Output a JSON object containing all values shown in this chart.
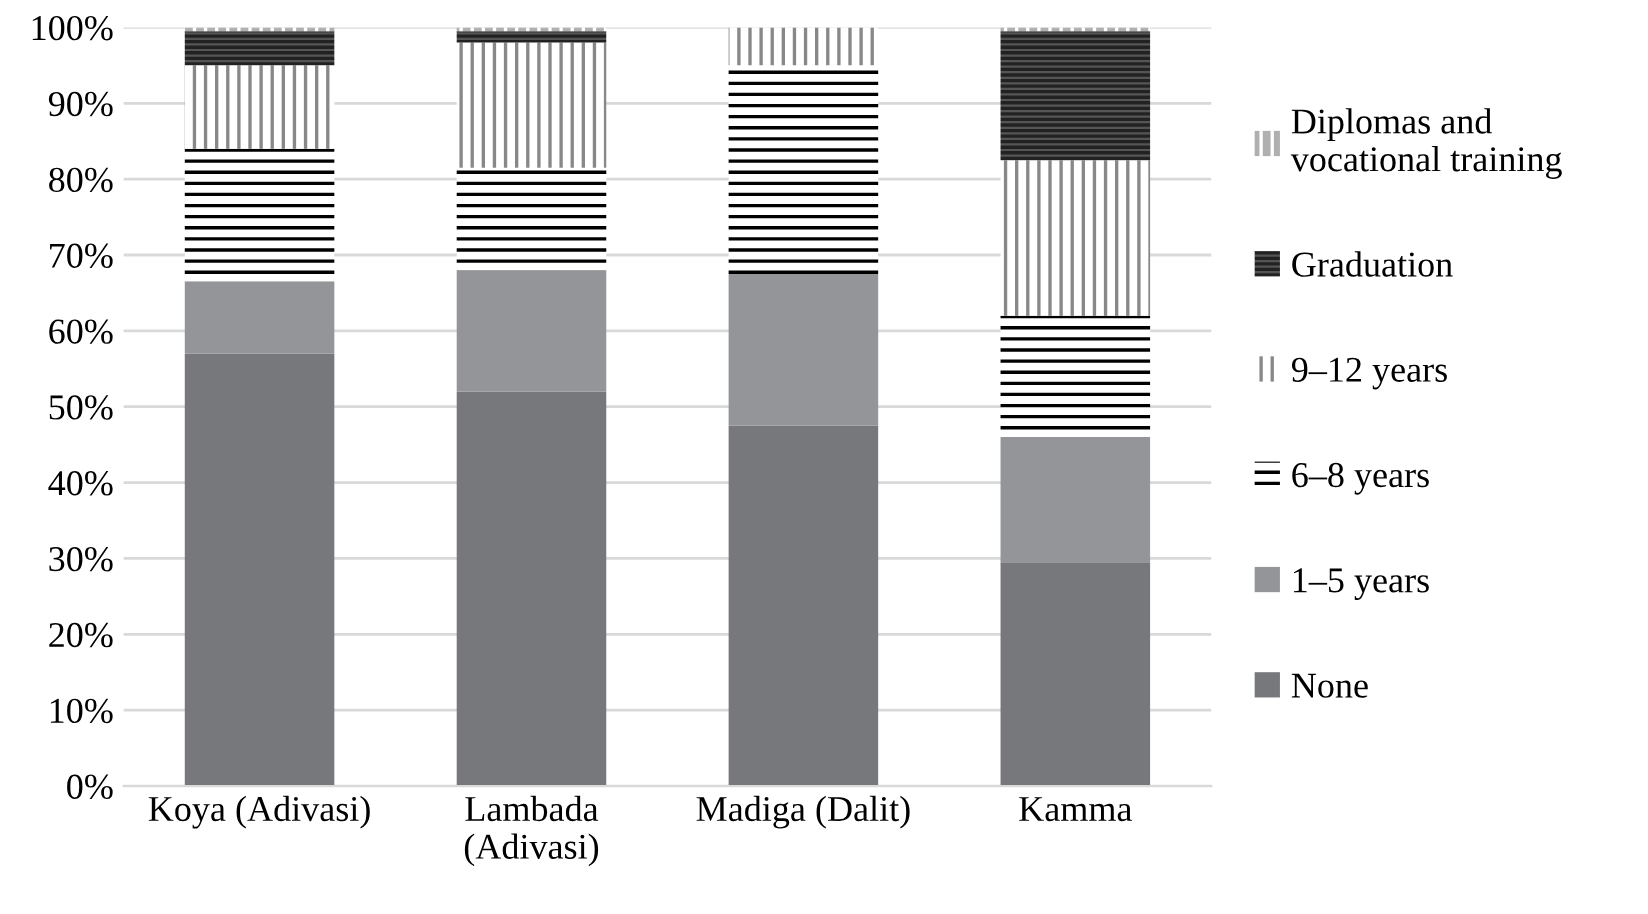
{
  "chart_data": {
    "type": "bar",
    "stacked": true,
    "categories": [
      "Koya (Adivasi)",
      "Lambada\n(Adivasi)",
      "Madiga (Dalit)",
      "Kamma"
    ],
    "series": [
      {
        "name": "None",
        "color": "#77787b",
        "values": [
          57,
          52,
          47.5,
          29.5
        ]
      },
      {
        "name": "1–5 years",
        "color": "#949598",
        "values": [
          9.5,
          16,
          20,
          16.5
        ]
      },
      {
        "name": "6–8 years",
        "color": "#ffffff",
        "values": [
          17.5,
          13.5,
          27.5,
          16
        ]
      },
      {
        "name": "9–12 years",
        "color": "#ffffff",
        "values": [
          11,
          16.5,
          5,
          20.5
        ]
      },
      {
        "name": "Graduation",
        "color": "#555555",
        "values": [
          4.5,
          1.5,
          0,
          17
        ]
      },
      {
        "name": "Diplomas and\nvocational training",
        "color": "#b0b0b0",
        "values": [
          0.5,
          0.5,
          0,
          0.5
        ]
      }
    ],
    "ylim": [
      0,
      100
    ],
    "yticks": [
      {
        "value": 0,
        "label": "0%"
      },
      {
        "value": 10,
        "label": "10%"
      },
      {
        "value": 20,
        "label": "20%"
      },
      {
        "value": 30,
        "label": "30%"
      },
      {
        "value": 40,
        "label": "40%"
      },
      {
        "value": 50,
        "label": "50%"
      },
      {
        "value": 60,
        "label": "60%"
      },
      {
        "value": 70,
        "label": "70%"
      },
      {
        "value": 80,
        "label": "80%"
      },
      {
        "value": 90,
        "label": "90%"
      },
      {
        "value": 100,
        "label": "100%"
      }
    ],
    "grid": "y",
    "legend": "right"
  }
}
